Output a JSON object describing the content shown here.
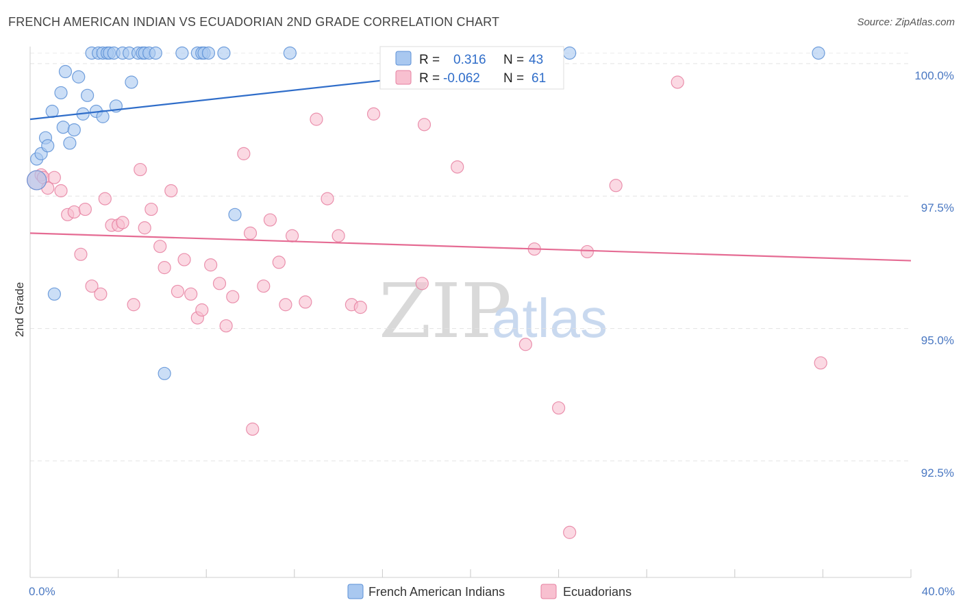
{
  "header": {
    "title": "FRENCH AMERICAN INDIAN VS ECUADORIAN 2ND GRADE CORRELATION CHART",
    "source": "Source: ZipAtlas.com"
  },
  "watermark": {
    "zip": "ZIP",
    "atlas": "atlas"
  },
  "stats_box": {
    "rows": [
      {
        "r_label": "R =",
        "r_value": "0.316",
        "n_label": "N =",
        "n_value": "43",
        "color": "#a9c8f0",
        "stroke": "#5b8fd6"
      },
      {
        "r_label": "R =",
        "r_value": "-0.062",
        "n_label": "N =",
        "n_value": "61",
        "color": "#f8c0d0",
        "stroke": "#e67fa0"
      }
    ]
  },
  "chart_data": {
    "type": "scatter",
    "title": "FRENCH AMERICAN INDIAN VS ECUADORIAN 2ND GRADE CORRELATION CHART",
    "xlabel": "",
    "ylabel": "2nd Grade",
    "xlim": [
      0,
      40
    ],
    "ylim": [
      90.3,
      100.4
    ],
    "x_tick_labels": [
      {
        "value": 0,
        "label": "0.0%"
      },
      {
        "value": 40,
        "label": "40.0%"
      }
    ],
    "x_minor_ticks": [
      0,
      4,
      8,
      12,
      16,
      20,
      24,
      28,
      32,
      36,
      40
    ],
    "y_ticks": [
      {
        "value": 100.0,
        "label": "100.0%"
      },
      {
        "value": 97.5,
        "label": "97.5%"
      },
      {
        "value": 95.0,
        "label": "95.0%"
      },
      {
        "value": 92.5,
        "label": "92.5%"
      }
    ],
    "grid": true,
    "legend_position": "bottom-center",
    "series": [
      {
        "name": "French American Indians",
        "fill": "#a9c8f0",
        "stroke": "#5b8fd6",
        "line_color": "#2f6dc9",
        "trend": {
          "x": [
            0,
            24
          ],
          "y": [
            98.95,
            100.05
          ]
        },
        "points": [
          {
            "x": 0.3,
            "y": 97.8,
            "s": 14
          },
          {
            "x": 0.3,
            "y": 98.2
          },
          {
            "x": 0.5,
            "y": 98.3
          },
          {
            "x": 0.7,
            "y": 98.6
          },
          {
            "x": 0.8,
            "y": 98.45
          },
          {
            "x": 1.0,
            "y": 99.1
          },
          {
            "x": 1.1,
            "y": 95.65
          },
          {
            "x": 1.4,
            "y": 99.45
          },
          {
            "x": 1.5,
            "y": 98.8
          },
          {
            "x": 1.6,
            "y": 99.85
          },
          {
            "x": 1.8,
            "y": 98.5
          },
          {
            "x": 2.0,
            "y": 98.75
          },
          {
            "x": 2.2,
            "y": 99.75
          },
          {
            "x": 2.4,
            "y": 99.05
          },
          {
            "x": 2.6,
            "y": 99.4
          },
          {
            "x": 2.8,
            "y": 100.2
          },
          {
            "x": 3.0,
            "y": 99.1
          },
          {
            "x": 3.1,
            "y": 100.2
          },
          {
            "x": 3.3,
            "y": 100.2
          },
          {
            "x": 3.3,
            "y": 99.0
          },
          {
            "x": 3.5,
            "y": 100.2
          },
          {
            "x": 3.6,
            "y": 100.2
          },
          {
            "x": 3.8,
            "y": 100.2
          },
          {
            "x": 3.9,
            "y": 99.2
          },
          {
            "x": 4.2,
            "y": 100.2
          },
          {
            "x": 4.5,
            "y": 100.2
          },
          {
            "x": 4.6,
            "y": 99.65
          },
          {
            "x": 4.9,
            "y": 100.2
          },
          {
            "x": 5.1,
            "y": 100.2
          },
          {
            "x": 5.2,
            "y": 100.2
          },
          {
            "x": 5.4,
            "y": 100.2
          },
          {
            "x": 5.7,
            "y": 100.2
          },
          {
            "x": 6.1,
            "y": 94.15
          },
          {
            "x": 6.9,
            "y": 100.2
          },
          {
            "x": 7.6,
            "y": 100.2
          },
          {
            "x": 7.8,
            "y": 100.2
          },
          {
            "x": 7.9,
            "y": 100.2
          },
          {
            "x": 8.1,
            "y": 100.2
          },
          {
            "x": 8.8,
            "y": 100.2
          },
          {
            "x": 9.3,
            "y": 97.15
          },
          {
            "x": 11.8,
            "y": 100.2
          },
          {
            "x": 24.5,
            "y": 100.2
          },
          {
            "x": 35.8,
            "y": 100.2
          }
        ]
      },
      {
        "name": "Ecuadorians",
        "fill": "#f8c0d0",
        "stroke": "#e67fa0",
        "line_color": "#e56b93",
        "trend": {
          "x": [
            0,
            40
          ],
          "y": [
            96.8,
            96.28
          ]
        },
        "points": [
          {
            "x": 0.3,
            "y": 97.8,
            "s": 14
          },
          {
            "x": 0.5,
            "y": 97.9
          },
          {
            "x": 0.6,
            "y": 97.85
          },
          {
            "x": 0.8,
            "y": 97.65
          },
          {
            "x": 1.1,
            "y": 97.85
          },
          {
            "x": 1.4,
            "y": 97.6
          },
          {
            "x": 1.7,
            "y": 97.15
          },
          {
            "x": 2.0,
            "y": 97.2
          },
          {
            "x": 2.3,
            "y": 96.4
          },
          {
            "x": 2.5,
            "y": 97.25
          },
          {
            "x": 2.8,
            "y": 95.8
          },
          {
            "x": 3.2,
            "y": 95.65
          },
          {
            "x": 3.4,
            "y": 97.45
          },
          {
            "x": 3.7,
            "y": 96.95
          },
          {
            "x": 4.0,
            "y": 96.95
          },
          {
            "x": 4.2,
            "y": 97.0
          },
          {
            "x": 4.7,
            "y": 95.45
          },
          {
            "x": 5.0,
            "y": 98.0
          },
          {
            "x": 5.2,
            "y": 96.9
          },
          {
            "x": 5.5,
            "y": 97.25
          },
          {
            "x": 5.9,
            "y": 96.55
          },
          {
            "x": 6.1,
            "y": 96.15
          },
          {
            "x": 6.4,
            "y": 97.6
          },
          {
            "x": 6.7,
            "y": 95.7
          },
          {
            "x": 7.0,
            "y": 96.3
          },
          {
            "x": 7.3,
            "y": 95.65
          },
          {
            "x": 7.6,
            "y": 95.2
          },
          {
            "x": 7.8,
            "y": 95.35
          },
          {
            "x": 8.2,
            "y": 96.2
          },
          {
            "x": 8.6,
            "y": 95.85
          },
          {
            "x": 8.9,
            "y": 95.05
          },
          {
            "x": 9.2,
            "y": 95.6
          },
          {
            "x": 9.7,
            "y": 98.3
          },
          {
            "x": 10.0,
            "y": 96.8
          },
          {
            "x": 10.1,
            "y": 93.1
          },
          {
            "x": 10.6,
            "y": 95.8
          },
          {
            "x": 10.9,
            "y": 97.05
          },
          {
            "x": 11.3,
            "y": 96.25
          },
          {
            "x": 11.6,
            "y": 95.45
          },
          {
            "x": 11.9,
            "y": 96.75
          },
          {
            "x": 12.5,
            "y": 95.5
          },
          {
            "x": 13.0,
            "y": 98.95
          },
          {
            "x": 13.5,
            "y": 97.45
          },
          {
            "x": 14.0,
            "y": 96.75
          },
          {
            "x": 14.6,
            "y": 95.45
          },
          {
            "x": 15.0,
            "y": 95.4
          },
          {
            "x": 15.6,
            "y": 99.05
          },
          {
            "x": 17.8,
            "y": 95.85
          },
          {
            "x": 17.9,
            "y": 98.85
          },
          {
            "x": 18.7,
            "y": 100.2
          },
          {
            "x": 19.4,
            "y": 98.05
          },
          {
            "x": 21.8,
            "y": 100.15
          },
          {
            "x": 22.6,
            "y": 100.2
          },
          {
            "x": 22.5,
            "y": 94.7
          },
          {
            "x": 22.9,
            "y": 96.5
          },
          {
            "x": 24.0,
            "y": 93.5
          },
          {
            "x": 24.5,
            "y": 91.15
          },
          {
            "x": 25.3,
            "y": 96.45
          },
          {
            "x": 26.6,
            "y": 97.7
          },
          {
            "x": 29.4,
            "y": 99.65
          },
          {
            "x": 35.9,
            "y": 94.35
          }
        ]
      }
    ]
  }
}
